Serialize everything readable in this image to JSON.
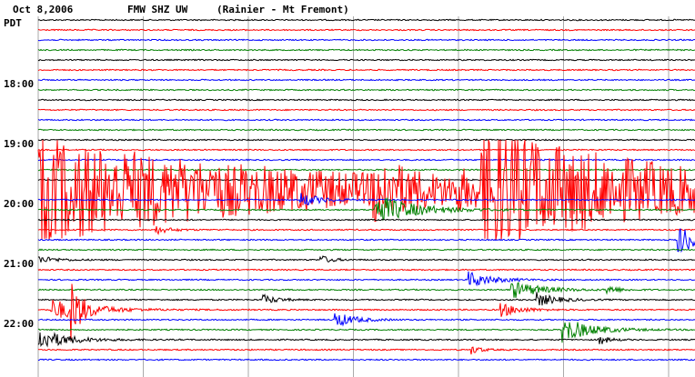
{
  "header": {
    "date": "Oct 8,2006",
    "station": "FMW SHZ UW",
    "location": "(Rainier - Mt Fremont)"
  },
  "time_axis": {
    "zone": "PDT",
    "labels": [
      "18:00",
      "19:00",
      "20:00",
      "21:00",
      "22:00"
    ]
  }
}
